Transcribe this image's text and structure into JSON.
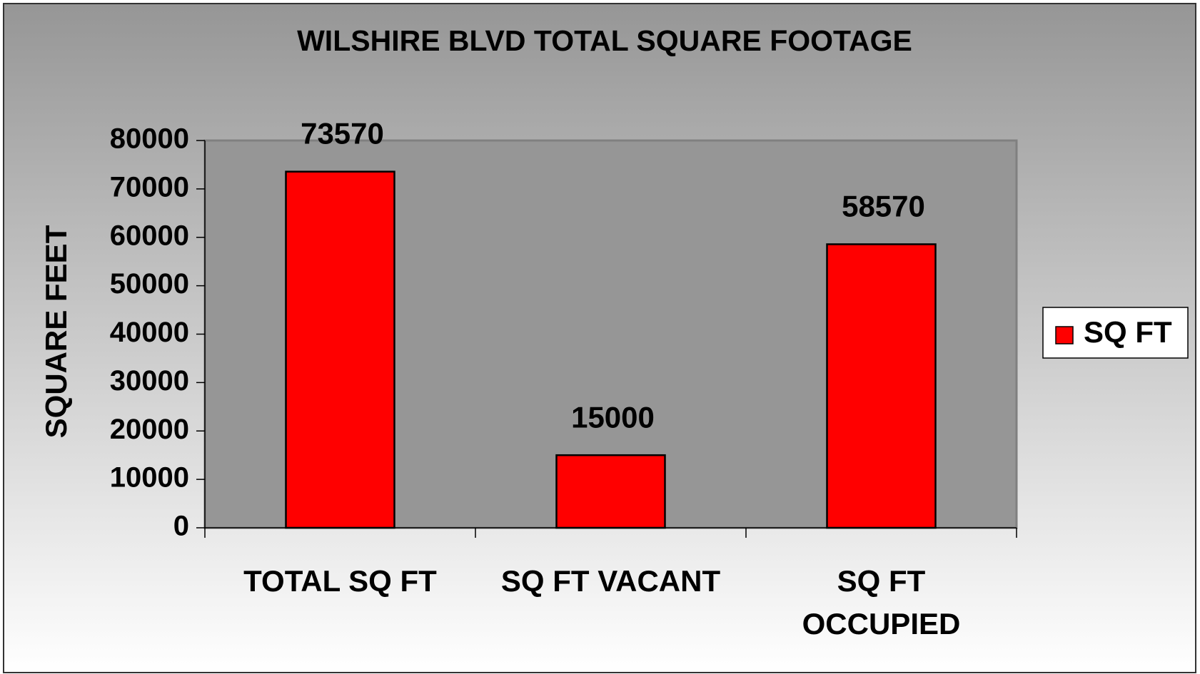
{
  "chart_data": {
    "type": "bar",
    "title": "WILSHIRE BLVD TOTAL SQUARE FOOTAGE",
    "y_label": "SQUARE FEET",
    "categories": [
      "TOTAL SQ FT",
      "SQ FT VACANT",
      "SQ FT OCCUPIED"
    ],
    "series": [
      {
        "name": "SQ FT",
        "color": "#ff0000",
        "values": [
          73570,
          15000,
          58570
        ]
      }
    ],
    "ylim": [
      0,
      80000
    ],
    "yticks": [
      0,
      10000,
      20000,
      30000,
      40000,
      50000,
      60000,
      70000,
      80000
    ],
    "legend": "right",
    "grid": false
  }
}
